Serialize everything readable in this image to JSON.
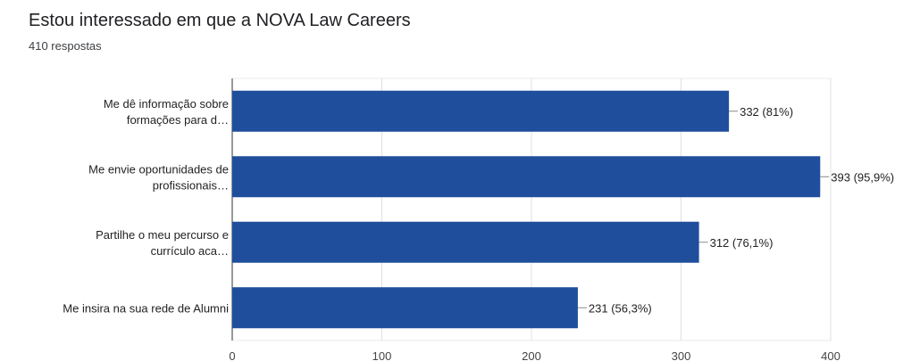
{
  "header": {
    "title": "Estou interessado em que a NOVA Law Careers",
    "subtitle": "410 respostas"
  },
  "chart_data": {
    "type": "bar",
    "orientation": "horizontal",
    "title": "Estou interessado em que a NOVA Law Careers",
    "subtitle": "410 respostas",
    "categories": [
      [
        "Me dê informação sobre",
        "formações para d…"
      ],
      [
        "Me envie oportunidades de",
        "profissionais…"
      ],
      [
        "Partilhe o meu percurso e",
        "currículo aca…"
      ],
      [
        "Me insira na sua rede de Alumni"
      ]
    ],
    "values": [
      332,
      393,
      312,
      231
    ],
    "data_labels": [
      "332 (81%)",
      "393 (95,9%)",
      "312 (76,1%)",
      "231 (56,3%)"
    ],
    "xlim": [
      0,
      400
    ],
    "xticks": [
      0,
      100,
      200,
      300,
      400
    ],
    "bar_color": "#1f4e9c",
    "grid": true,
    "legend": "none"
  }
}
